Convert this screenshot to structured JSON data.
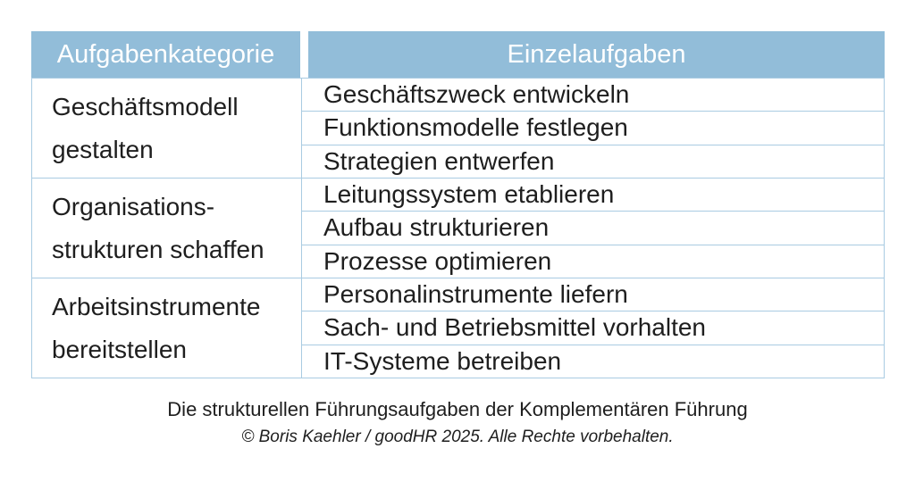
{
  "chart_data": {
    "type": "table",
    "title": "Die strukturellen Führungsaufgaben der Komplementären Führung",
    "columns": {
      "category": "Aufgabenkategorie",
      "tasks": "Einzelaufgaben"
    },
    "groups": [
      {
        "category": "Geschäftsmodell\ngestalten",
        "tasks": [
          "Geschäftszweck entwickeln",
          "Funktionsmodelle festlegen",
          "Strategien entwerfen"
        ]
      },
      {
        "category": "Organisations-\nstrukturen schaffen",
        "tasks": [
          "Leitungssystem etablieren",
          "Aufbau strukturieren",
          "Prozesse optimieren"
        ]
      },
      {
        "category": "Arbeitsinstrumente\nbereitstellen",
        "tasks": [
          "Personalinstrumente liefern",
          "Sach- und Betriebsmittel vorhalten",
          "IT-Systeme betreiben"
        ]
      }
    ]
  },
  "caption": {
    "title": "Die strukturellen Führungsaufgaben der Komplementären Führung",
    "copyright": "© Boris Kaehler / goodHR 2025. Alle Rechte vorbehalten."
  },
  "colors": {
    "header_bg": "#92bdd9",
    "header_text": "#ffffff",
    "border": "#a9cbe2",
    "text": "#1e1e1e",
    "background": "#ffffff"
  }
}
